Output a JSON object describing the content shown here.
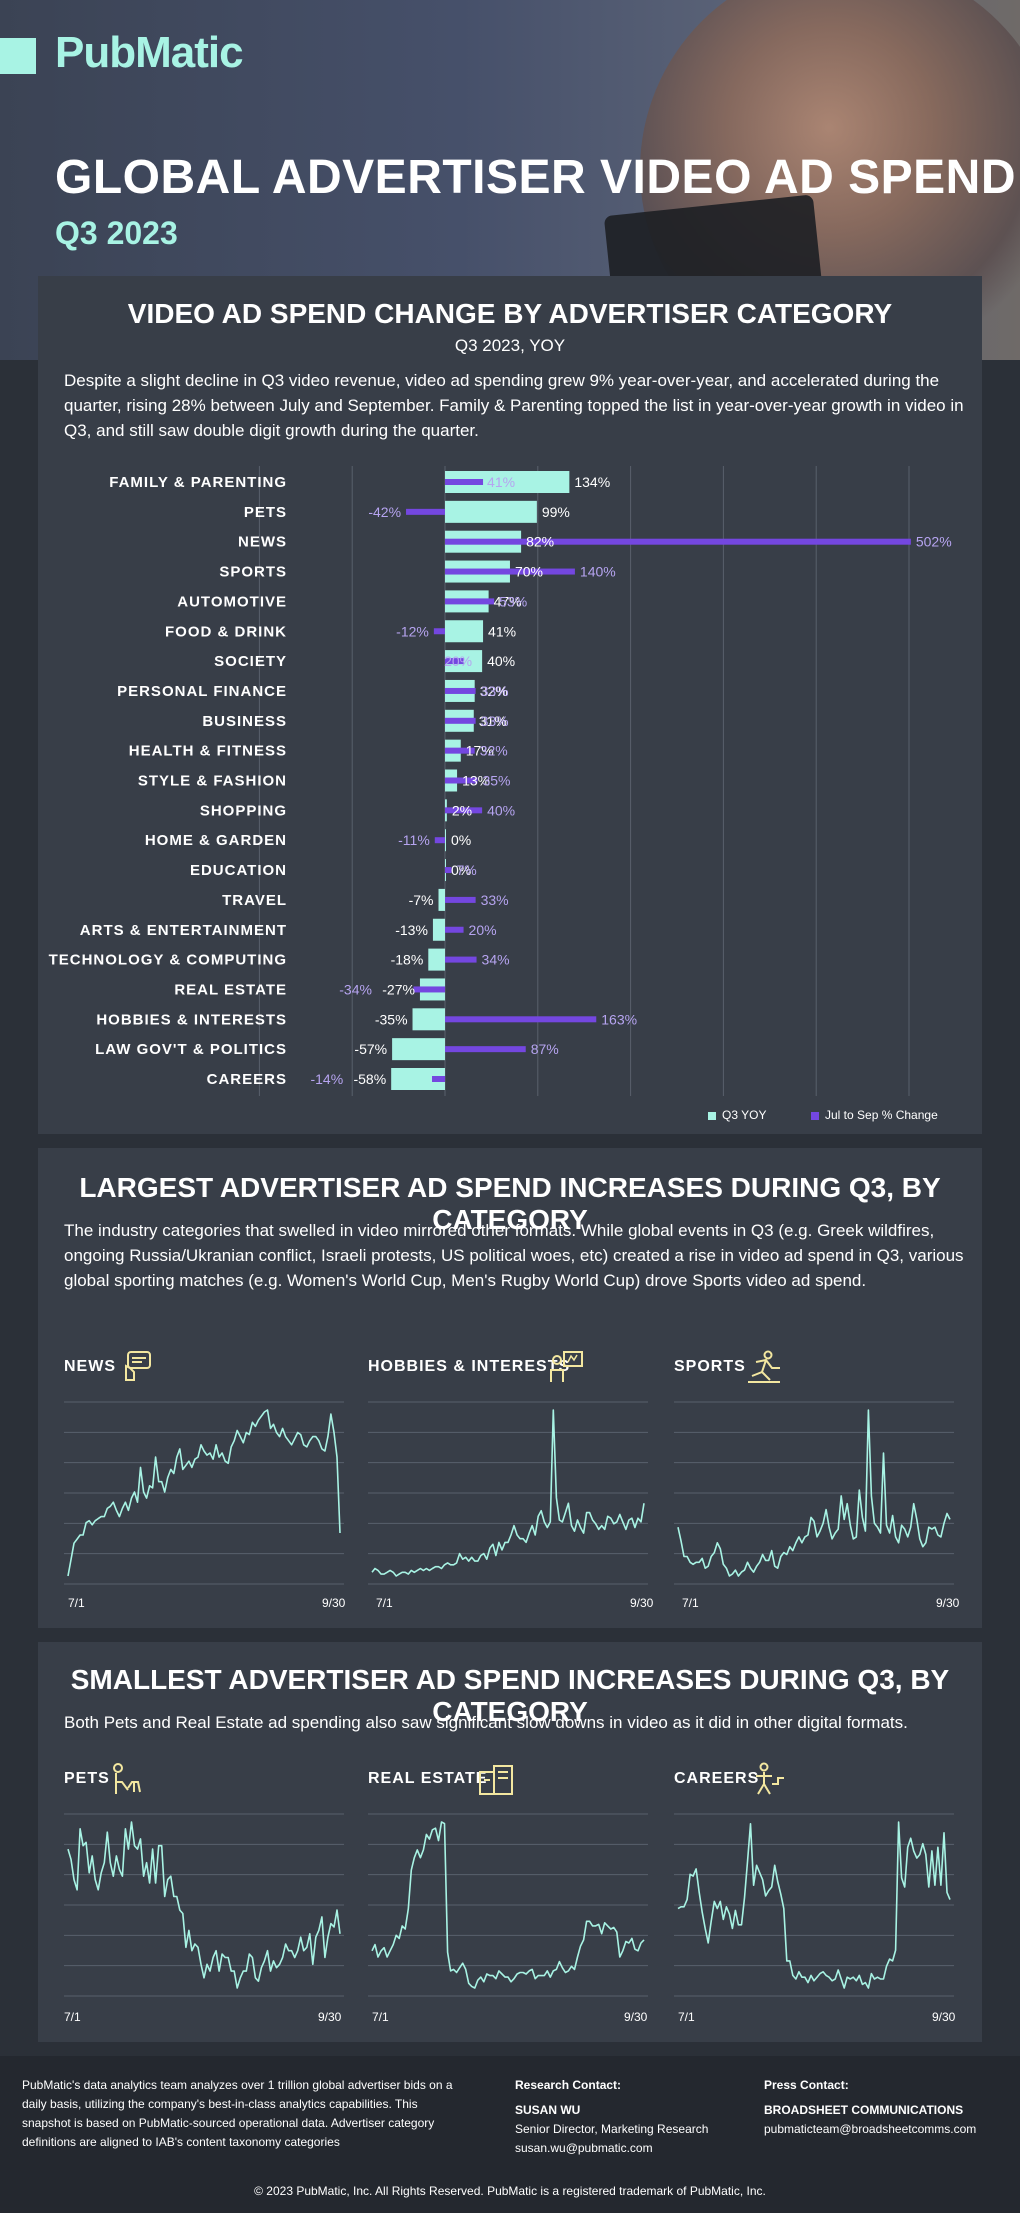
{
  "header": {
    "logo": "PubMatic",
    "title": "GLOBAL ADVERTISER VIDEO AD SPEND",
    "subtitle": "Q3 2023"
  },
  "section1": {
    "title": "VIDEO AD SPEND CHANGE BY ADVERTISER CATEGORY",
    "subtitle": "Q3 2023, YOY",
    "text": "Despite a slight decline in Q3 video revenue, video ad spending grew 9% year-over-year, and accelerated during the quarter, rising 28% between July and September. Family & Parenting topped the list in year-over-year growth in video in Q3, and still saw double digit growth during the quarter."
  },
  "section2": {
    "title": "LARGEST ADVERTISER AD SPEND INCREASES DURING Q3, BY CATEGORY",
    "text": "The industry categories that swelled in video mirrored other formats. While global events in Q3 (e.g. Greek wildfires, ongoing Russia/Ukranian conflict, Israeli protests, US political woes, etc) created a rise in video ad spend in Q3, various global sporting matches (e.g. Women's World Cup, Men's Rugby World Cup) drove Sports video ad spend."
  },
  "section3": {
    "title": "SMALLEST ADVERTISER AD SPEND INCREASES DURING Q3, BY CATEGORY",
    "text": "Both Pets and Real Estate ad spending also saw significant slow downs in video as it did in other digital formats."
  },
  "colors": {
    "mint": "#a8f3e4",
    "purple": "#7447e0",
    "purple_label": "#b6a4f0",
    "panel": "#383e48",
    "icon_yellow": "#f3e7a0"
  },
  "chart_data": [
    {
      "type": "bar",
      "title": "VIDEO AD SPEND CHANGE BY ADVERTISER CATEGORY",
      "subtitle": "Q3 2023, YOY",
      "orientation": "horizontal",
      "categories": [
        "FAMILY & PARENTING",
        "PETS",
        "NEWS",
        "SPORTS",
        "AUTOMOTIVE",
        "FOOD & DRINK",
        "SOCIETY",
        "PERSONAL FINANCE",
        "BUSINESS",
        "HEALTH & FITNESS",
        "STYLE & FASHION",
        "SHOPPING",
        "HOME & GARDEN",
        "EDUCATION",
        "TRAVEL",
        "ARTS & ENTERTAINMENT",
        "TECHNOLOGY & COMPUTING",
        "REAL ESTATE",
        "HOBBIES & INTERESTS",
        "LAW GOV'T & POLITICS",
        "CAREERS"
      ],
      "series": [
        {
          "name": "Q3 YOY",
          "values": [
            134,
            99,
            82,
            70,
            47,
            41,
            40,
            32,
            31,
            17,
            13,
            2,
            0,
            0,
            -7,
            -13,
            -18,
            -27,
            -35,
            -57,
            -58
          ]
        },
        {
          "name": "Jul to Sep % Change",
          "values": [
            41,
            -42,
            502,
            140,
            53,
            -12,
            20,
            33,
            33,
            32,
            35,
            40,
            -11,
            7,
            33,
            20,
            34,
            -34,
            163,
            87,
            -14
          ]
        }
      ],
      "value_suffix": "%",
      "grid": true,
      "legend": "bottom-right"
    },
    {
      "type": "line",
      "title": "NEWS",
      "x_labels": [
        "7/1",
        "9/30"
      ],
      "icon": "news-icon",
      "values": [
        2,
        10,
        18,
        20,
        22,
        22,
        28,
        29,
        27,
        29,
        30,
        31,
        31,
        35,
        36,
        38,
        34,
        31,
        35,
        38,
        34,
        40,
        43,
        38,
        55,
        43,
        40,
        46,
        45,
        60,
        48,
        48,
        43,
        50,
        54,
        52,
        60,
        64,
        54,
        56,
        58,
        55,
        59,
        60,
        66,
        63,
        61,
        62,
        59,
        66,
        60,
        62,
        58,
        57,
        65,
        68,
        73,
        70,
        67,
        72,
        71,
        77,
        75,
        78,
        80,
        82,
        83,
        74,
        76,
        72,
        70,
        74,
        70,
        68,
        66,
        69,
        72,
        71,
        66,
        65,
        68,
        70,
        70,
        68,
        64,
        63,
        70,
        81,
        72,
        60,
        23
      ]
    },
    {
      "type": "line",
      "title": "HOBBIES & INTERESTS",
      "x_labels": [
        "7/1",
        "9/30"
      ],
      "icon": "hobbies-icon",
      "values": [
        8,
        10,
        9,
        7,
        7,
        8,
        9,
        8,
        6,
        7,
        8,
        8,
        7,
        9,
        8,
        9,
        10,
        9,
        10,
        9,
        10,
        11,
        11,
        10,
        12,
        13,
        12,
        12,
        13,
        18,
        15,
        16,
        14,
        16,
        14,
        14,
        17,
        18,
        15,
        21,
        23,
        17,
        24,
        20,
        24,
        24,
        28,
        33,
        28,
        26,
        26,
        24,
        29,
        33,
        28,
        38,
        41,
        35,
        32,
        35,
        95,
        48,
        36,
        35,
        40,
        45,
        33,
        30,
        36,
        32,
        29,
        40,
        40,
        36,
        34,
        31,
        33,
        31,
        38,
        37,
        34,
        35,
        39,
        35,
        31,
        36,
        37,
        32,
        37,
        35,
        45
      ]
    },
    {
      "type": "line",
      "title": "SPORTS",
      "x_labels": [
        "7/1",
        "9/30"
      ],
      "icon": "sports-icon",
      "values": [
        38,
        31,
        23,
        23,
        20,
        19,
        20,
        20,
        22,
        17,
        18,
        23,
        25,
        30,
        27,
        19,
        17,
        13,
        14,
        16,
        13,
        15,
        16,
        20,
        17,
        15,
        18,
        20,
        24,
        21,
        21,
        26,
        18,
        17,
        23,
        25,
        24,
        28,
        26,
        30,
        33,
        30,
        33,
        34,
        43,
        41,
        33,
        36,
        40,
        47,
        38,
        32,
        35,
        37,
        54,
        42,
        50,
        39,
        32,
        33,
        57,
        43,
        36,
        98,
        54,
        40,
        38,
        35,
        76,
        39,
        35,
        44,
        33,
        30,
        39,
        37,
        33,
        38,
        50,
        42,
        32,
        28,
        30,
        38,
        37,
        38,
        34,
        33,
        40,
        45,
        42
      ]
    },
    {
      "type": "line",
      "title": "PETS",
      "x_labels": [
        "7/1",
        "9/30"
      ],
      "icon": "pets-icon",
      "values": [
        70,
        67,
        61,
        58,
        76,
        71,
        72,
        63,
        68,
        61,
        58,
        63,
        66,
        75,
        66,
        62,
        68,
        64,
        62,
        76,
        70,
        78,
        71,
        70,
        73,
        62,
        66,
        60,
        70,
        60,
        71,
        71,
        56,
        61,
        62,
        56,
        56,
        52,
        51,
        41,
        46,
        40,
        42,
        41,
        36,
        32,
        36,
        34,
        38,
        40,
        34,
        39,
        38,
        38,
        34,
        34,
        29,
        32,
        34,
        34,
        39,
        38,
        32,
        31,
        35,
        37,
        40,
        34,
        37,
        35,
        36,
        38,
        42,
        40,
        40,
        38,
        40,
        44,
        40,
        41,
        45,
        36,
        44,
        46,
        50,
        38,
        44,
        48,
        47,
        52,
        45
      ]
    },
    {
      "type": "line",
      "title": "REAL ESTATE",
      "x_labels": [
        "7/1",
        "9/30"
      ],
      "icon": "real-estate-icon",
      "values": [
        24,
        28,
        20,
        24,
        26,
        20,
        24,
        28,
        34,
        32,
        40,
        38,
        51,
        76,
        84,
        89,
        84,
        89,
        99,
        96,
        102,
        103,
        95,
        107,
        106,
        23,
        11,
        12,
        10,
        13,
        16,
        12,
        3,
        1,
        0,
        5,
        7,
        4,
        9,
        8,
        8,
        6,
        11,
        9,
        7,
        7,
        4,
        6,
        9,
        10,
        10,
        9,
        11,
        12,
        6,
        8,
        8,
        8,
        11,
        7,
        11,
        12,
        17,
        13,
        10,
        11,
        14,
        12,
        20,
        27,
        31,
        43,
        43,
        40,
        40,
        41,
        35,
        42,
        40,
        38,
        39,
        36,
        20,
        24,
        30,
        29,
        32,
        25,
        24,
        29,
        31
      ]
    },
    {
      "type": "line",
      "title": "CAREERS",
      "x_labels": [
        "7/1",
        "9/30"
      ],
      "icon": "careers-icon",
      "values": [
        62,
        63,
        63,
        67,
        81,
        80,
        84,
        71,
        60,
        51,
        43,
        55,
        66,
        62,
        66,
        56,
        63,
        59,
        51,
        61,
        53,
        53,
        68,
        88,
        109,
        75,
        86,
        82,
        78,
        69,
        72,
        74,
        86,
        77,
        70,
        62,
        33,
        33,
        25,
        23,
        27,
        24,
        24,
        21,
        25,
        22,
        24,
        26,
        27,
        25,
        24,
        22,
        23,
        28,
        23,
        18,
        24,
        23,
        24,
        22,
        25,
        20,
        21,
        18,
        26,
        23,
        24,
        23,
        23,
        30,
        34,
        33,
        39,
        110,
        79,
        74,
        96,
        101,
        94,
        90,
        92,
        98,
        92,
        74,
        94,
        75,
        96,
        75,
        104,
        71,
        67
      ]
    }
  ],
  "footer": {
    "about": "PubMatic's data analytics team analyzes over 1 trillion global advertiser bids on a daily basis, utilizing the company's best-in-class analytics capabilities. This snapshot is based on PubMatic-sourced operational data. Advertiser category definitions are aligned to IAB's content taxonomy categories",
    "research_label": "Research Contact:",
    "research_name": "SUSAN WU",
    "research_role": "Senior Director, Marketing Research",
    "research_email": "susan.wu@pubmatic.com",
    "press_label": "Press Contact:",
    "press_name": "BROADSHEET COMMUNICATIONS",
    "press_email": "pubmaticteam@broadsheetcomms.com",
    "copyright": "© 2023 PubMatic, Inc. All Rights Reserved. PubMatic is a registered trademark of PubMatic, Inc."
  }
}
